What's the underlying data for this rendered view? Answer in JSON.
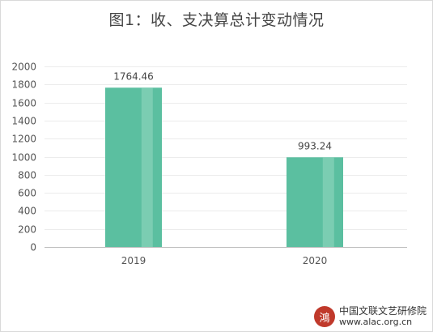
{
  "chart_data": {
    "type": "bar",
    "title": "图1：收、支决算总计变动情况",
    "categories": [
      "2019",
      "2020"
    ],
    "values": [
      1764.46,
      993.24
    ],
    "data_labels": [
      "1764.46",
      "993.24"
    ],
    "ylim": [
      0,
      2000
    ],
    "yticks": [
      "0",
      "200",
      "400",
      "600",
      "800",
      "1000",
      "1200",
      "1400",
      "1600",
      "1800",
      "2000"
    ],
    "ytick_values": [
      0,
      200,
      400,
      600,
      800,
      1000,
      1200,
      1400,
      1600,
      1800,
      2000
    ],
    "xlabel": "",
    "ylabel": "",
    "grid": true,
    "bar_color": "#5bbfa0",
    "bar_highlight_color": "#85d1b8"
  },
  "watermark": {
    "org": "中国文联文艺研修院",
    "url": "www.alac.org.cn",
    "seal_char": "鴻",
    "seal_color": "#c0392b"
  }
}
